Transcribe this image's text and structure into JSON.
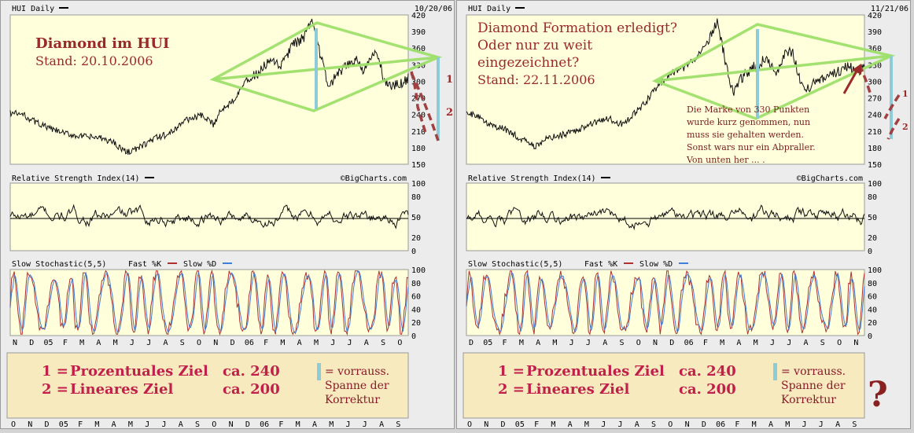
{
  "chart_data": [
    {
      "type": "line",
      "panel": "left",
      "title": "HUI Daily",
      "date": "10/20/06",
      "source": "©BigCharts.com",
      "price_axis": {
        "ticks": [
          420,
          390,
          360,
          330,
          300,
          270,
          240,
          210,
          180,
          150
        ],
        "ylim": [
          150,
          420
        ]
      },
      "rsi": {
        "label": "Relative Strength Index(14)",
        "ticks": [
          100,
          80,
          50,
          20,
          0
        ]
      },
      "stoch": {
        "label": "Slow Stochastic(5,5)",
        "fast_label": "Fast %K",
        "slow_label": "Slow %D",
        "fast_color": "#b03030",
        "slow_color": "#3f7fd8",
        "ticks": [
          100,
          80,
          60,
          40,
          20,
          0
        ]
      },
      "x_labels": [
        "N",
        "D",
        "05",
        "F",
        "M",
        "A",
        "M",
        "J",
        "J",
        "A",
        "S",
        "O",
        "N",
        "D",
        "06",
        "F",
        "M",
        "A",
        "M",
        "J",
        "J",
        "A",
        "S",
        "O"
      ],
      "bottom_x_labels": [
        "O",
        "N",
        "D",
        "05",
        "F",
        "M",
        "A",
        "M",
        "J",
        "J",
        "A",
        "S",
        "O",
        "N",
        "D",
        "06",
        "F",
        "M",
        "A",
        "M",
        "J",
        "J",
        "A",
        "S"
      ],
      "price_keypoints": [
        [
          0,
          243
        ],
        [
          0.03,
          240
        ],
        [
          0.06,
          228
        ],
        [
          0.1,
          214
        ],
        [
          0.14,
          205
        ],
        [
          0.18,
          200
        ],
        [
          0.22,
          198
        ],
        [
          0.26,
          190
        ],
        [
          0.29,
          172
        ],
        [
          0.32,
          178
        ],
        [
          0.36,
          196
        ],
        [
          0.4,
          205
        ],
        [
          0.44,
          230
        ],
        [
          0.48,
          238
        ],
        [
          0.51,
          222
        ],
        [
          0.53,
          248
        ],
        [
          0.56,
          266
        ],
        [
          0.59,
          300
        ],
        [
          0.62,
          312
        ],
        [
          0.65,
          335
        ],
        [
          0.68,
          328
        ],
        [
          0.71,
          365
        ],
        [
          0.74,
          380
        ],
        [
          0.76,
          412
        ],
        [
          0.78,
          345
        ],
        [
          0.8,
          290
        ],
        [
          0.82,
          310
        ],
        [
          0.85,
          330
        ],
        [
          0.87,
          340
        ],
        [
          0.89,
          318
        ],
        [
          0.91,
          345
        ],
        [
          0.92,
          355
        ],
        [
          0.94,
          300
        ],
        [
          0.96,
          290
        ],
        [
          0.98,
          295
        ],
        [
          1.0,
          305
        ]
      ],
      "annotations": {
        "title_line1": "Diamond im HUI",
        "title_line2": "Stand: 20.10.2006",
        "mark1": "1",
        "mark2": "2"
      },
      "legend": {
        "line1_num": "1 =",
        "line1_text": "Prozentuales Ziel",
        "line1_val": "ca. 240",
        "line2_num": "2 =",
        "line2_text": "Lineares Ziel",
        "line2_val": "ca. 200",
        "note1": "= vorrauss.",
        "note2": "Spanne der",
        "note3": "Korrektur"
      },
      "colors": {
        "plot_bg": "#ffffdc",
        "diamond": "#9ee06a",
        "bar": "#8ecbd8",
        "dash": "#a04040"
      }
    },
    {
      "type": "line",
      "panel": "right",
      "title": "HUI Daily",
      "date": "11/21/06",
      "source": "©BigCharts.com",
      "price_axis": {
        "ticks": [
          420,
          390,
          360,
          330,
          300,
          270,
          240,
          210,
          180,
          150
        ],
        "ylim": [
          150,
          420
        ]
      },
      "rsi": {
        "label": "Relative Strength Index(14)",
        "ticks": [
          100,
          80,
          50,
          20,
          0
        ]
      },
      "stoch": {
        "label": "Slow Stochastic(5,5)",
        "fast_label": "Fast %K",
        "slow_label": "Slow %D",
        "fast_color": "#b03030",
        "slow_color": "#3f7fd8",
        "ticks": [
          100,
          80,
          60,
          40,
          20,
          0
        ]
      },
      "x_labels": [
        "D",
        "05",
        "F",
        "M",
        "A",
        "M",
        "J",
        "J",
        "A",
        "S",
        "O",
        "N",
        "D",
        "06",
        "F",
        "M",
        "A",
        "M",
        "J",
        "J",
        "A",
        "S",
        "O",
        "N"
      ],
      "bottom_x_labels": [
        "O",
        "N",
        "D",
        "05",
        "F",
        "M",
        "A",
        "M",
        "J",
        "J",
        "A",
        "S",
        "O",
        "N",
        "D",
        "06",
        "F",
        "M",
        "A",
        "M",
        "J",
        "J",
        "A",
        "S"
      ],
      "price_keypoints": [
        [
          0,
          242
        ],
        [
          0.03,
          236
        ],
        [
          0.06,
          222
        ],
        [
          0.1,
          212
        ],
        [
          0.14,
          195
        ],
        [
          0.17,
          182
        ],
        [
          0.2,
          195
        ],
        [
          0.24,
          203
        ],
        [
          0.28,
          212
        ],
        [
          0.32,
          226
        ],
        [
          0.36,
          232
        ],
        [
          0.39,
          222
        ],
        [
          0.42,
          240
        ],
        [
          0.45,
          262
        ],
        [
          0.48,
          292
        ],
        [
          0.52,
          316
        ],
        [
          0.55,
          325
        ],
        [
          0.58,
          345
        ],
        [
          0.61,
          375
        ],
        [
          0.63,
          408
        ],
        [
          0.65,
          338
        ],
        [
          0.67,
          280
        ],
        [
          0.69,
          305
        ],
        [
          0.72,
          325
        ],
        [
          0.75,
          340
        ],
        [
          0.78,
          318
        ],
        [
          0.8,
          350
        ],
        [
          0.82,
          355
        ],
        [
          0.84,
          296
        ],
        [
          0.86,
          288
        ],
        [
          0.88,
          300
        ],
        [
          0.91,
          312
        ],
        [
          0.94,
          320
        ],
        [
          0.96,
          326
        ],
        [
          0.98,
          318
        ],
        [
          1.0,
          322
        ]
      ],
      "annotations": {
        "title_line1": "Diamond Formation erledigt?",
        "title_line2": "Oder nur zu weit",
        "title_line3": "eingezeichnet?",
        "title_line4": "Stand: 22.11.2006",
        "note_line1": "Die Marke von 330 Punkten",
        "note_line2": "wurde kurz genommen, nun",
        "note_line3": "muss sie gehalten werden.",
        "note_line4": "Sonst wars nur ein Abpraller.",
        "note_line5": "Von unten her ... .",
        "mark1": "1",
        "mark2": "2",
        "question": "?"
      },
      "legend": {
        "line1_num": "1 =",
        "line1_text": "Prozentuales Ziel",
        "line1_val": "ca. 240",
        "line2_num": "2 =",
        "line2_text": "Lineares Ziel",
        "line2_val": "ca. 200",
        "note1": "= vorrauss.",
        "note2": "Spanne der",
        "note3": "Korrektur"
      },
      "colors": {
        "plot_bg": "#ffffdc",
        "diamond": "#9ee06a",
        "bar": "#8ecbd8",
        "dash": "#a04040"
      }
    }
  ]
}
